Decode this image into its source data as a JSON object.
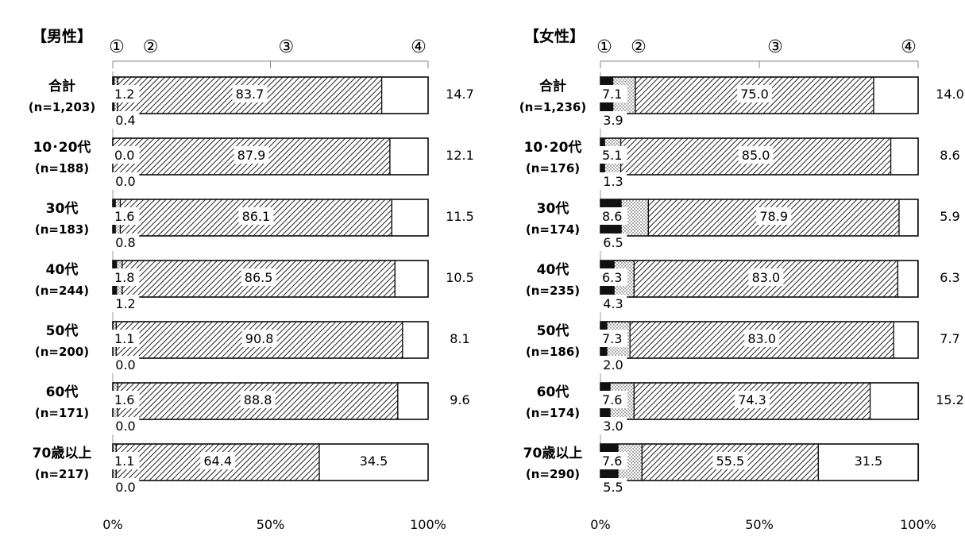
{
  "chart_data": [
    {
      "type": "bar",
      "stacked": true,
      "orientation": "horizontal",
      "title": "【男性】",
      "legend_markers": [
        "①",
        "②",
        "③",
        "④"
      ],
      "categories": [
        {
          "name": "合計",
          "n": "(n=1,203)"
        },
        {
          "name": "10･20代",
          "n": "(n=188)"
        },
        {
          "name": "30代",
          "n": "(n=183)"
        },
        {
          "name": "40代",
          "n": "(n=244)"
        },
        {
          "name": "50代",
          "n": "(n=200)"
        },
        {
          "name": "60代",
          "n": "(n=171)"
        },
        {
          "name": "70歳以上",
          "n": "(n=217)"
        }
      ],
      "series": [
        {
          "values": [
            0.4,
            0.0,
            0.8,
            1.2,
            0.0,
            0.0,
            0.0
          ],
          "labels": [
            "0.4",
            "0.0",
            "0.8",
            "1.2",
            "0.0",
            "0.0",
            "0.0"
          ],
          "pattern": "solid"
        },
        {
          "values": [
            1.2,
            0.0,
            1.6,
            1.8,
            1.1,
            1.6,
            1.1
          ],
          "labels": [
            "1.2",
            "0.0",
            "1.6",
            "1.8",
            "1.1",
            "1.6",
            "1.1"
          ],
          "pattern": "dots"
        },
        {
          "values": [
            83.7,
            87.9,
            86.1,
            86.5,
            90.8,
            88.8,
            64.4
          ],
          "labels": [
            "83.7",
            "87.9",
            "86.1",
            "86.5",
            "90.8",
            "88.8",
            "64.4"
          ],
          "pattern": "hatch"
        },
        {
          "values": [
            14.7,
            12.1,
            11.5,
            10.5,
            8.1,
            9.6,
            34.5
          ],
          "labels": [
            "14.7",
            "12.1",
            "11.5",
            "10.5",
            "8.1",
            "9.6",
            "34.5"
          ],
          "pattern": "white"
        }
      ],
      "xlim": [
        0,
        100
      ],
      "xticks": [
        "0%",
        "50%",
        "100%"
      ]
    },
    {
      "type": "bar",
      "stacked": true,
      "orientation": "horizontal",
      "title": "【女性】",
      "legend_markers": [
        "①",
        "②",
        "③",
        "④"
      ],
      "categories": [
        {
          "name": "合計",
          "n": "(n=1,236)"
        },
        {
          "name": "10･20代",
          "n": "(n=176)"
        },
        {
          "name": "30代",
          "n": "(n=174)"
        },
        {
          "name": "40代",
          "n": "(n=235)"
        },
        {
          "name": "50代",
          "n": "(n=186)"
        },
        {
          "name": "60代",
          "n": "(n=174)"
        },
        {
          "name": "70歳以上",
          "n": "(n=290)"
        }
      ],
      "series": [
        {
          "values": [
            3.9,
            1.3,
            6.5,
            4.3,
            2.0,
            3.0,
            5.5
          ],
          "labels": [
            "3.9",
            "1.3",
            "6.5",
            "4.3",
            "2.0",
            "3.0",
            "5.5"
          ],
          "pattern": "solid"
        },
        {
          "values": [
            7.1,
            5.1,
            8.6,
            6.3,
            7.3,
            7.6,
            7.6
          ],
          "labels": [
            "7.1",
            "5.1",
            "8.6",
            "6.3",
            "7.3",
            "7.6",
            "7.6"
          ],
          "pattern": "dots"
        },
        {
          "values": [
            75.0,
            85.0,
            78.9,
            83.0,
            83.0,
            74.3,
            55.5
          ],
          "labels": [
            "75.0",
            "85.0",
            "78.9",
            "83.0",
            "83.0",
            "74.3",
            "55.5"
          ],
          "pattern": "hatch"
        },
        {
          "values": [
            14.0,
            8.6,
            5.9,
            6.3,
            7.7,
            15.2,
            31.5
          ],
          "labels": [
            "14.0",
            "8.6",
            "5.9",
            "6.3",
            "7.7",
            "15.2",
            "31.5"
          ],
          "pattern": "white"
        }
      ],
      "xlim": [
        0,
        100
      ],
      "xticks": [
        "0%",
        "50%",
        "100%"
      ]
    }
  ]
}
